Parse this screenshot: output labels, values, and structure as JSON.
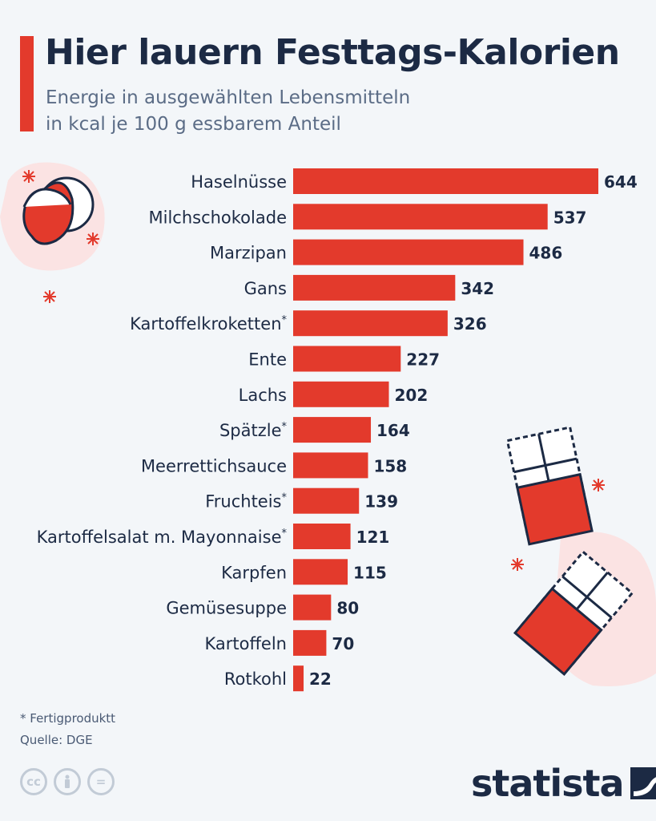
{
  "header": {
    "title": "Hier lauern Festtags-Kalorien",
    "subtitle_line1": "Energie in ausgewählten Lebensmitteln",
    "subtitle_line2": "in kcal je 100 g essbarem Anteil"
  },
  "colors": {
    "bar": "#e33a2c",
    "text": "#1c2a44",
    "background": "#f3f6f9"
  },
  "chart_data": {
    "type": "bar",
    "orientation": "horizontal",
    "categories": [
      "Haselnüsse",
      "Milchschokolade",
      "Marzipan",
      "Gans",
      "Kartoffelkroketten*",
      "Ente",
      "Lachs",
      "Spätzle*",
      "Meerrettichsauce",
      "Fruchteis*",
      "Kartoffelsalat m. Mayonnaise*",
      "Karpfen",
      "Gemüsesuppe",
      "Kartoffeln",
      "Rotkohl"
    ],
    "values": [
      644,
      537,
      486,
      342,
      326,
      227,
      202,
      164,
      158,
      139,
      121,
      115,
      80,
      70,
      22
    ],
    "xlim": [
      0,
      644
    ],
    "grid": false,
    "data_labels": true
  },
  "footer": {
    "footnote": "* Fertigproduktt",
    "source": "Quelle: DGE",
    "brand": "statista",
    "cc_icons": [
      "cc",
      "by",
      "nd"
    ]
  }
}
